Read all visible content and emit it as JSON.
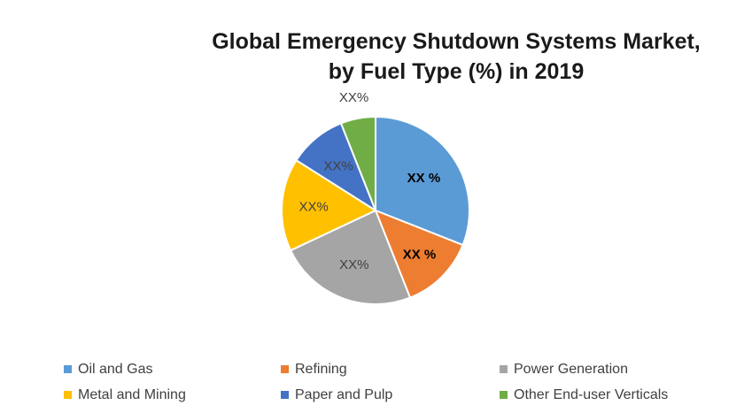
{
  "chart_data": {
    "type": "pie",
    "title_line1": "Global Emergency Shutdown Systems  Market,",
    "title_line2": "by Fuel Type (%) in 2019",
    "legend_position": "bottom",
    "series": [
      {
        "name": "Oil and Gas",
        "value": 31,
        "label": "XX %",
        "color": "#5b9bd5",
        "label_bold": true
      },
      {
        "name": "Refining",
        "value": 13,
        "label": "XX %",
        "color": "#ed7d31",
        "label_bold": true
      },
      {
        "name": "Power Generation",
        "value": 24,
        "label": "XX%",
        "color": "#a5a5a5",
        "label_bold": false
      },
      {
        "name": "Metal and Mining",
        "value": 16,
        "label": "XX%",
        "color": "#ffc000",
        "label_bold": false
      },
      {
        "name": "Paper and Pulp",
        "value": 10,
        "label": "XX%",
        "color": "#4472c4",
        "label_bold": false
      },
      {
        "name": "Other End-user Verticals",
        "value": 6,
        "label": "XX%",
        "color": "#70ad47",
        "label_bold": false
      }
    ]
  }
}
